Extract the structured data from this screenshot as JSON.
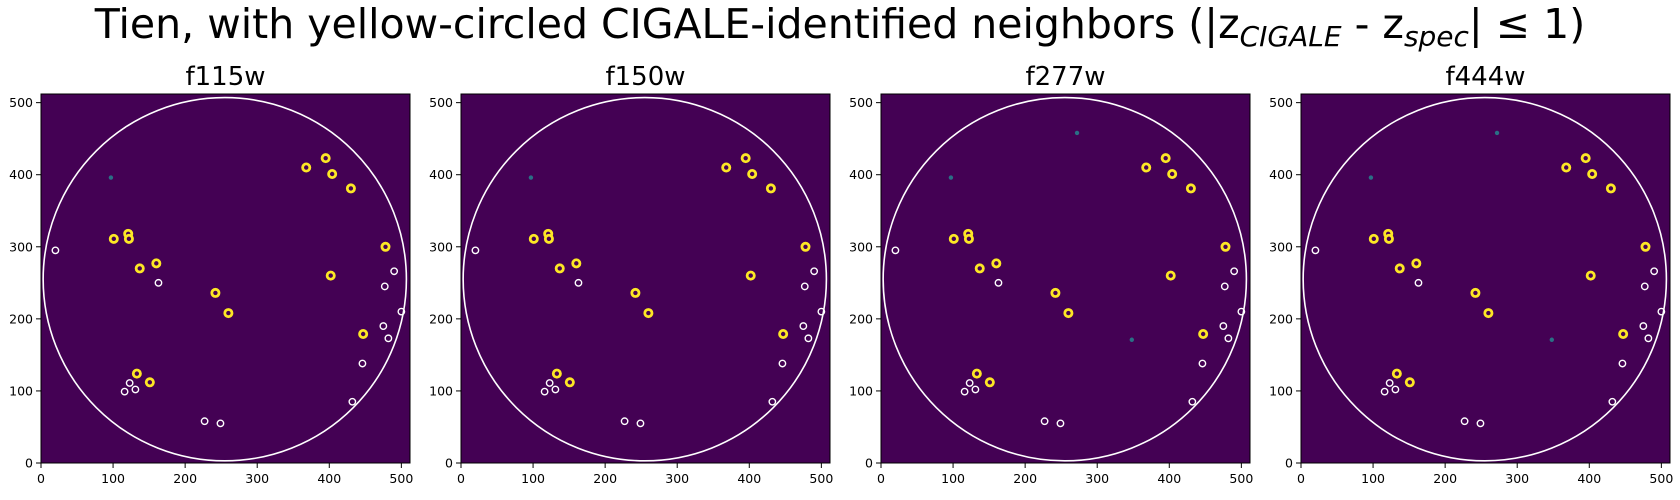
{
  "figure": {
    "title_main": "Tien, with yellow-circled CIGALE-identified neighbors (|z",
    "title_sub1": "CIGALE",
    "title_mid": " - z",
    "title_sub2": "spec",
    "title_end": "| ≤ 1)"
  },
  "colors": {
    "background": "#440154",
    "highlight": "#fde725",
    "marker_edge": "#ffffff",
    "source_blip": "#26828e"
  },
  "chart_data": [
    {
      "type": "scatter",
      "title": "f115w",
      "xlim": [
        0,
        512
      ],
      "ylim": [
        0,
        512
      ],
      "xticks": [
        0,
        100,
        200,
        300,
        400,
        500
      ],
      "yticks": [
        0,
        100,
        200,
        300,
        400,
        500
      ],
      "big_circle": {
        "cx": 255,
        "cy": 255,
        "r": 252
      },
      "yellow_neighbors": [
        [
          368,
          410
        ],
        [
          395,
          423
        ],
        [
          404,
          401
        ],
        [
          430,
          381
        ],
        [
          101,
          311
        ],
        [
          121,
          318
        ],
        [
          122,
          311
        ],
        [
          137,
          270
        ],
        [
          160,
          277
        ],
        [
          478,
          300
        ],
        [
          402,
          260
        ],
        [
          242,
          236
        ],
        [
          260,
          208
        ],
        [
          447,
          179
        ],
        [
          133,
          124
        ],
        [
          151,
          112
        ]
      ],
      "other_neighbors": [
        [
          20,
          295
        ],
        [
          490,
          266
        ],
        [
          163,
          250
        ],
        [
          477,
          245
        ],
        [
          500,
          210
        ],
        [
          475,
          190
        ],
        [
          482,
          173
        ],
        [
          446,
          138
        ],
        [
          123,
          111
        ],
        [
          131,
          102
        ],
        [
          116,
          99
        ],
        [
          432,
          85
        ],
        [
          227,
          58
        ],
        [
          249,
          55
        ]
      ],
      "sources": [
        [
          97,
          396
        ]
      ]
    },
    {
      "type": "scatter",
      "title": "f150w",
      "xlim": [
        0,
        512
      ],
      "ylim": [
        0,
        512
      ],
      "xticks": [
        0,
        100,
        200,
        300,
        400,
        500
      ],
      "yticks": [
        0,
        100,
        200,
        300,
        400,
        500
      ],
      "big_circle": {
        "cx": 255,
        "cy": 255,
        "r": 252
      },
      "yellow_neighbors": [
        [
          368,
          410
        ],
        [
          395,
          423
        ],
        [
          404,
          401
        ],
        [
          430,
          381
        ],
        [
          101,
          311
        ],
        [
          121,
          318
        ],
        [
          122,
          311
        ],
        [
          137,
          270
        ],
        [
          160,
          277
        ],
        [
          478,
          300
        ],
        [
          402,
          260
        ],
        [
          242,
          236
        ],
        [
          260,
          208
        ],
        [
          447,
          179
        ],
        [
          133,
          124
        ],
        [
          151,
          112
        ]
      ],
      "other_neighbors": [
        [
          20,
          295
        ],
        [
          490,
          266
        ],
        [
          163,
          250
        ],
        [
          477,
          245
        ],
        [
          500,
          210
        ],
        [
          475,
          190
        ],
        [
          482,
          173
        ],
        [
          446,
          138
        ],
        [
          123,
          111
        ],
        [
          131,
          102
        ],
        [
          116,
          99
        ],
        [
          432,
          85
        ],
        [
          227,
          58
        ],
        [
          249,
          55
        ]
      ],
      "sources": [
        [
          97,
          396
        ]
      ]
    },
    {
      "type": "scatter",
      "title": "f277w",
      "xlim": [
        0,
        512
      ],
      "ylim": [
        0,
        512
      ],
      "xticks": [
        0,
        100,
        200,
        300,
        400,
        500
      ],
      "yticks": [
        0,
        100,
        200,
        300,
        400,
        500
      ],
      "big_circle": {
        "cx": 255,
        "cy": 255,
        "r": 252
      },
      "yellow_neighbors": [
        [
          368,
          410
        ],
        [
          395,
          423
        ],
        [
          404,
          401
        ],
        [
          430,
          381
        ],
        [
          101,
          311
        ],
        [
          121,
          318
        ],
        [
          122,
          311
        ],
        [
          137,
          270
        ],
        [
          160,
          277
        ],
        [
          478,
          300
        ],
        [
          402,
          260
        ],
        [
          242,
          236
        ],
        [
          260,
          208
        ],
        [
          447,
          179
        ],
        [
          133,
          124
        ],
        [
          151,
          112
        ]
      ],
      "other_neighbors": [
        [
          20,
          295
        ],
        [
          490,
          266
        ],
        [
          163,
          250
        ],
        [
          477,
          245
        ],
        [
          500,
          210
        ],
        [
          475,
          190
        ],
        [
          482,
          173
        ],
        [
          446,
          138
        ],
        [
          123,
          111
        ],
        [
          131,
          102
        ],
        [
          116,
          99
        ],
        [
          432,
          85
        ],
        [
          227,
          58
        ],
        [
          249,
          55
        ]
      ],
      "sources": [
        [
          97,
          396
        ],
        [
          272,
          458
        ],
        [
          348,
          171
        ]
      ]
    },
    {
      "type": "scatter",
      "title": "f444w",
      "xlim": [
        0,
        512
      ],
      "ylim": [
        0,
        512
      ],
      "xticks": [
        0,
        100,
        200,
        300,
        400,
        500
      ],
      "yticks": [
        0,
        100,
        200,
        300,
        400,
        500
      ],
      "big_circle": {
        "cx": 255,
        "cy": 255,
        "r": 252
      },
      "yellow_neighbors": [
        [
          368,
          410
        ],
        [
          395,
          423
        ],
        [
          404,
          401
        ],
        [
          430,
          381
        ],
        [
          101,
          311
        ],
        [
          121,
          318
        ],
        [
          122,
          311
        ],
        [
          137,
          270
        ],
        [
          160,
          277
        ],
        [
          478,
          300
        ],
        [
          402,
          260
        ],
        [
          242,
          236
        ],
        [
          260,
          208
        ],
        [
          447,
          179
        ],
        [
          133,
          124
        ],
        [
          151,
          112
        ]
      ],
      "other_neighbors": [
        [
          20,
          295
        ],
        [
          490,
          266
        ],
        [
          163,
          250
        ],
        [
          477,
          245
        ],
        [
          500,
          210
        ],
        [
          475,
          190
        ],
        [
          482,
          173
        ],
        [
          446,
          138
        ],
        [
          123,
          111
        ],
        [
          131,
          102
        ],
        [
          116,
          99
        ],
        [
          432,
          85
        ],
        [
          227,
          58
        ],
        [
          249,
          55
        ]
      ],
      "sources": [
        [
          97,
          396
        ],
        [
          272,
          458
        ],
        [
          348,
          171
        ]
      ]
    }
  ]
}
